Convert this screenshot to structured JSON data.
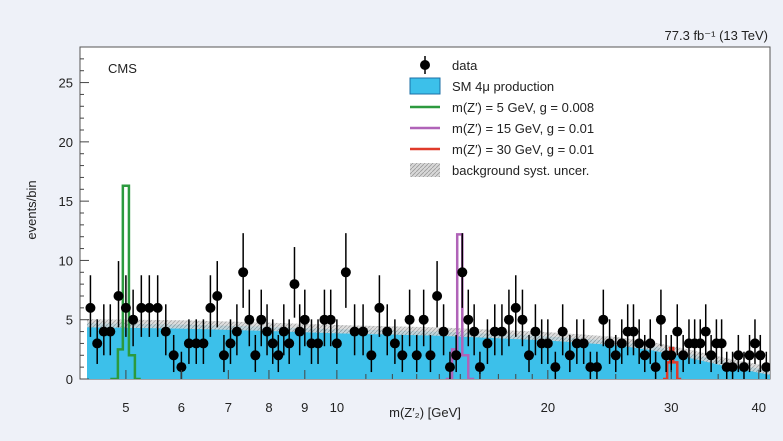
{
  "chart_data": {
    "type": "histogram",
    "lumi_label": "77.3 fb⁻¹ (13 TeV)",
    "experiment_label": "CMS",
    "ylabel": "events/bin",
    "xlabel": "m(Z′₂) [GeV]",
    "x_scale": "log",
    "xlim": [
      4.3,
      41.5
    ],
    "ylim": [
      0,
      28
    ],
    "yticks": [
      0,
      5,
      10,
      15,
      20,
      25
    ],
    "xticks": [
      5,
      6,
      7,
      8,
      9,
      10,
      20,
      30,
      40
    ],
    "legend": {
      "placement": "top-right",
      "entries": [
        {
          "label": "data",
          "kind": "marker"
        },
        {
          "label": "SM 4μ production",
          "kind": "fill",
          "color": "#3cc0ea"
        },
        {
          "label": "m(Z′) = 5 GeV, g = 0.008",
          "kind": "line",
          "color": "#2c9a3e"
        },
        {
          "label": "m(Z′) = 15 GeV, g = 0.01",
          "kind": "line",
          "color": "#b063b8"
        },
        {
          "label": "m(Z′) = 30 GeV, g = 0.01",
          "kind": "line",
          "color": "#e03a2a"
        },
        {
          "label": "background syst. uncer.",
          "kind": "hatch",
          "color": "#b8b8b8"
        }
      ]
    },
    "colors": {
      "background": "#3cc0ea",
      "background_edge": "#1d6fa5",
      "signal_5": "#2c9a3e",
      "signal_15": "#b063b8",
      "signal_30": "#e03a2a",
      "data": "#000000"
    },
    "background_sm": {
      "x": [
        4.4,
        6,
        8,
        10,
        14,
        20,
        25,
        28,
        32,
        36,
        41.5
      ],
      "y": [
        4.7,
        4.6,
        4.4,
        4.2,
        4.0,
        3.6,
        3.2,
        2.8,
        2.1,
        1.4,
        0.7
      ]
    },
    "signals": [
      {
        "name": "m(Z′) = 5 GeV, g = 0.008",
        "color_key": "signal_5",
        "x": [
          4.75,
          4.87,
          4.95,
          5.05,
          5.15,
          5.25
        ],
        "y": [
          0,
          2.5,
          16.3,
          2.0,
          0,
          0
        ]
      },
      {
        "name": "m(Z′) = 15 GeV, g = 0.01",
        "color_key": "signal_15",
        "x": [
          14.3,
          14.6,
          14.85,
          15.1,
          15.4,
          15.7
        ],
        "y": [
          0,
          2.5,
          12.2,
          2.0,
          0,
          0
        ]
      },
      {
        "name": "m(Z′) = 30 GeV, g = 0.01",
        "color_key": "signal_30",
        "x": [
          29.2,
          29.6,
          29.9,
          30.2,
          30.6,
          31.0
        ],
        "y": [
          0,
          1.4,
          2.6,
          1.4,
          0,
          0
        ]
      }
    ],
    "data": {
      "x": [
        4.45,
        4.55,
        4.65,
        4.75,
        4.88,
        5.0,
        5.12,
        5.26,
        5.4,
        5.55,
        5.7,
        5.85,
        6.0,
        6.15,
        6.3,
        6.45,
        6.6,
        6.75,
        6.9,
        7.05,
        7.2,
        7.35,
        7.5,
        7.65,
        7.8,
        7.95,
        8.1,
        8.25,
        8.4,
        8.55,
        8.7,
        8.85,
        9.0,
        9.2,
        9.4,
        9.6,
        9.8,
        10.0,
        10.3,
        10.6,
        10.9,
        11.2,
        11.5,
        11.8,
        12.1,
        12.4,
        12.7,
        13.0,
        13.3,
        13.6,
        13.9,
        14.2,
        14.5,
        14.8,
        15.1,
        15.4,
        15.7,
        16.0,
        16.4,
        16.8,
        17.2,
        17.6,
        18.0,
        18.4,
        18.8,
        19.2,
        19.6,
        20.0,
        20.5,
        21.0,
        21.5,
        22.0,
        22.5,
        23.0,
        23.5,
        24.0,
        24.5,
        25.0,
        25.5,
        26.0,
        26.5,
        27.0,
        27.5,
        28.0,
        28.5,
        29.0,
        29.5,
        30.0,
        30.6,
        31.2,
        31.8,
        32.4,
        33.0,
        33.6,
        34.2,
        34.8,
        35.4,
        36.0,
        36.7,
        37.4,
        38.1,
        38.8,
        39.5,
        40.2,
        41.0
      ],
      "y": [
        6,
        3,
        4,
        4,
        7,
        6,
        5,
        6,
        6,
        6,
        4,
        2,
        1,
        3,
        3,
        3,
        6,
        7,
        2,
        3,
        4,
        9,
        5,
        2,
        5,
        4,
        3,
        2,
        4,
        3,
        8,
        4,
        5,
        3,
        3,
        5,
        5,
        3,
        9,
        4,
        4,
        2,
        6,
        4,
        3,
        2,
        5,
        2,
        5,
        2,
        7,
        4,
        1,
        2,
        9,
        5,
        4,
        1,
        3,
        4,
        4,
        5,
        6,
        5,
        2,
        4,
        3,
        3,
        1,
        4,
        2,
        3,
        3,
        1,
        1,
        5,
        3,
        2,
        3,
        4,
        4,
        3,
        2,
        3,
        1,
        5,
        2,
        2,
        4,
        2,
        3,
        3,
        3,
        4,
        2,
        3,
        3,
        1,
        1,
        2,
        1,
        2,
        3,
        2,
        1
      ]
    }
  }
}
